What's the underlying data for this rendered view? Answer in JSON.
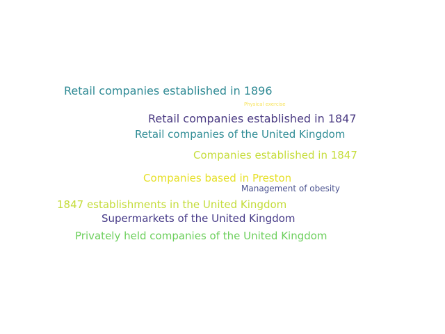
{
  "words": [
    {
      "text": "Retail companies established in 1896",
      "color": "#2f8a94"
    },
    {
      "text": "Physical exercise",
      "color": "#f7e35a"
    },
    {
      "text": "Retail companies established in 1847",
      "color": "#4a3a82"
    },
    {
      "text": "Retail companies of the United Kingdom",
      "color": "#2f8c95"
    },
    {
      "text": "Companies established in 1847",
      "color": "#c6dd3c"
    },
    {
      "text": "Companies based in Preston",
      "color": "#e6e029"
    },
    {
      "text": "Management of obesity",
      "color": "#4b5390"
    },
    {
      "text": "1847 establishments in the United Kingdom",
      "color": "#c4dc3a"
    },
    {
      "text": "Supermarkets of the United Kingdom",
      "color": "#463a87"
    },
    {
      "text": "Privately held companies of the United Kingdom",
      "color": "#6ccf5c"
    }
  ]
}
